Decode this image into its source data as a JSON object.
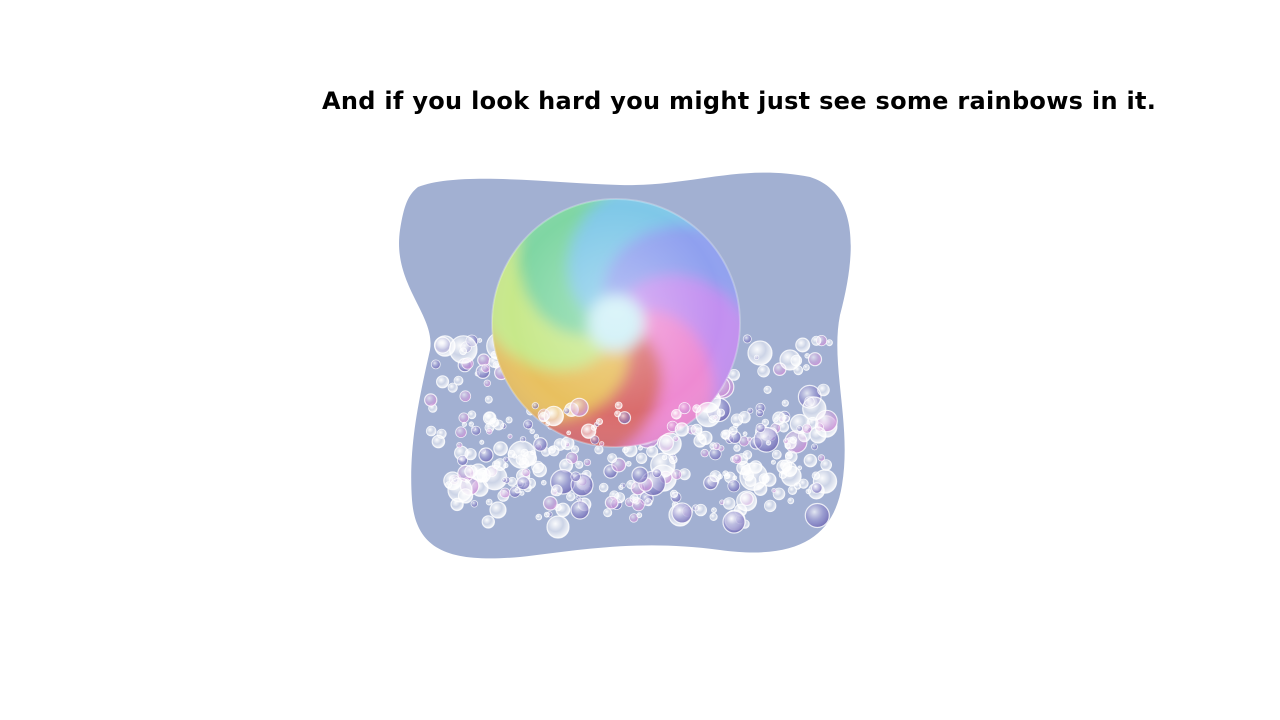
{
  "slide": {
    "caption": "And if you look hard you might just see some rainbows in it."
  },
  "illustration": {
    "background_blob_color": "#a2b0d2",
    "bubble_tints": [
      "#ffffff",
      "#8f88cc",
      "#c98fd6",
      "#e6e9f7"
    ],
    "rainbow_colors": [
      "#d96c6c",
      "#e8c05e",
      "#c7e88a",
      "#7fd6a3",
      "#7fc8e8",
      "#8fa0ef",
      "#c28ff0",
      "#ee8ad2"
    ],
    "icons": [
      "paper-blob",
      "rainbow-swirl-bubble",
      "foam-bubbles"
    ]
  }
}
